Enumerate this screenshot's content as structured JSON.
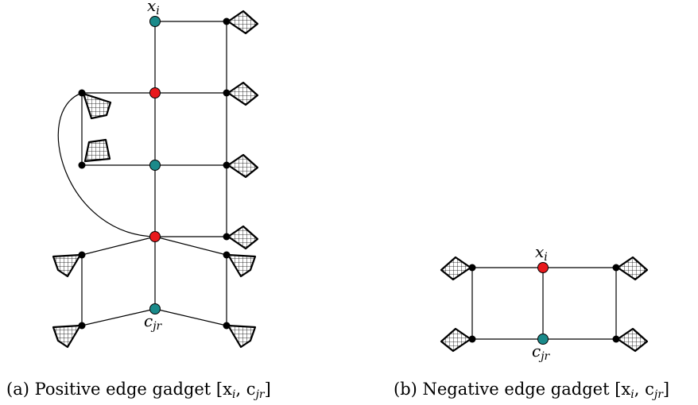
{
  "colors": {
    "red_node": "#e8191c",
    "teal_node": "#1a8a8a",
    "black_node": "#000000",
    "stroke": "#000000"
  },
  "diagram_a": {
    "label_top_var": "x",
    "label_top_sub": "i",
    "label_bottom_var": "c",
    "label_bottom_sub": "jr",
    "caption": "(a) Positive edge gadget [x",
    "caption_sub1": "i",
    "caption_mid": ", c",
    "caption_sub2": "jr",
    "caption_end": "]"
  },
  "diagram_b": {
    "label_top_var": "x",
    "label_top_sub": "i",
    "label_bottom_var": "c",
    "label_bottom_sub": "jr",
    "caption": "(b) Negative edge gadget [x",
    "caption_sub1": "i",
    "caption_mid": ", c",
    "caption_sub2": "jr",
    "caption_end": "]"
  }
}
